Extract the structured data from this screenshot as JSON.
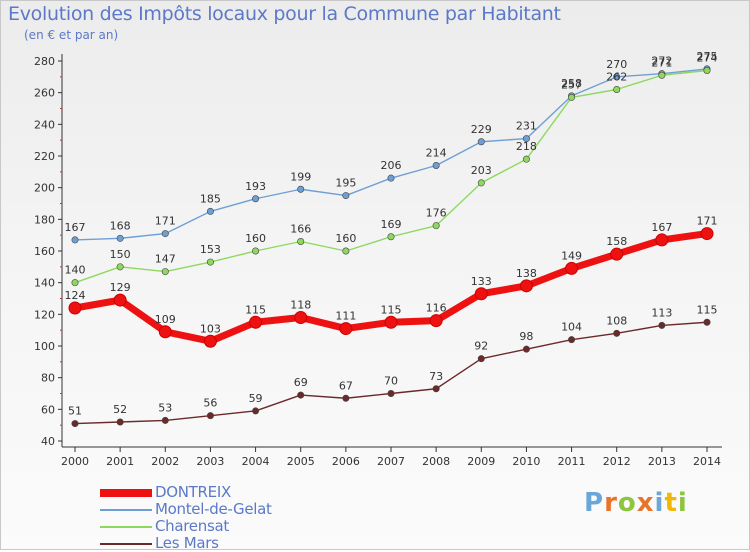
{
  "title": "Evolution des Impôts locaux pour la Commune par Habitant",
  "subtitle": "(en € et par an)",
  "logo": {
    "letters": [
      {
        "ch": "P",
        "color": "#6aa6d8"
      },
      {
        "ch": "r",
        "color": "#e8742a"
      },
      {
        "ch": "o",
        "color": "#8cc63f"
      },
      {
        "ch": "x",
        "color": "#e8742a"
      },
      {
        "ch": "i",
        "color": "#6aa6d8"
      },
      {
        "ch": "t",
        "color": "#f2b705"
      },
      {
        "ch": "i",
        "color": "#8cc63f"
      }
    ]
  },
  "chart_data": {
    "type": "line",
    "title": "Evolution des Impôts locaux pour la Commune par Habitant",
    "subtitle": "(en € et par an)",
    "x": [
      "2000",
      "2001",
      "2002",
      "2003",
      "2004",
      "2005",
      "2006",
      "2007",
      "2008",
      "2009",
      "2010",
      "2011",
      "2012",
      "2013",
      "2014"
    ],
    "ylim": [
      40,
      280
    ],
    "yticks": [
      40,
      60,
      80,
      100,
      120,
      140,
      160,
      180,
      200,
      220,
      240,
      260,
      280
    ],
    "grid": false,
    "legend_position": "bottom-left",
    "series": [
      {
        "name": "DONTREIX",
        "color": "#ee1111",
        "values": [
          124,
          129,
          109,
          103,
          115,
          118,
          111,
          115,
          116,
          133,
          138,
          149,
          158,
          167,
          171
        ]
      },
      {
        "name": "Montel-de-Gelat",
        "color": "#6e9fd4",
        "values": [
          167,
          168,
          171,
          185,
          193,
          199,
          195,
          206,
          214,
          229,
          231,
          258,
          270,
          272,
          275
        ]
      },
      {
        "name": "Charensat",
        "color": "#8ed860",
        "values": [
          140,
          150,
          147,
          153,
          160,
          166,
          160,
          169,
          176,
          203,
          218,
          257,
          262,
          271,
          274
        ]
      },
      {
        "name": "Les Mars",
        "color": "#6b2a2a",
        "values": [
          51,
          52,
          53,
          56,
          59,
          69,
          67,
          70,
          73,
          92,
          98,
          104,
          108,
          113,
          115
        ]
      }
    ]
  }
}
